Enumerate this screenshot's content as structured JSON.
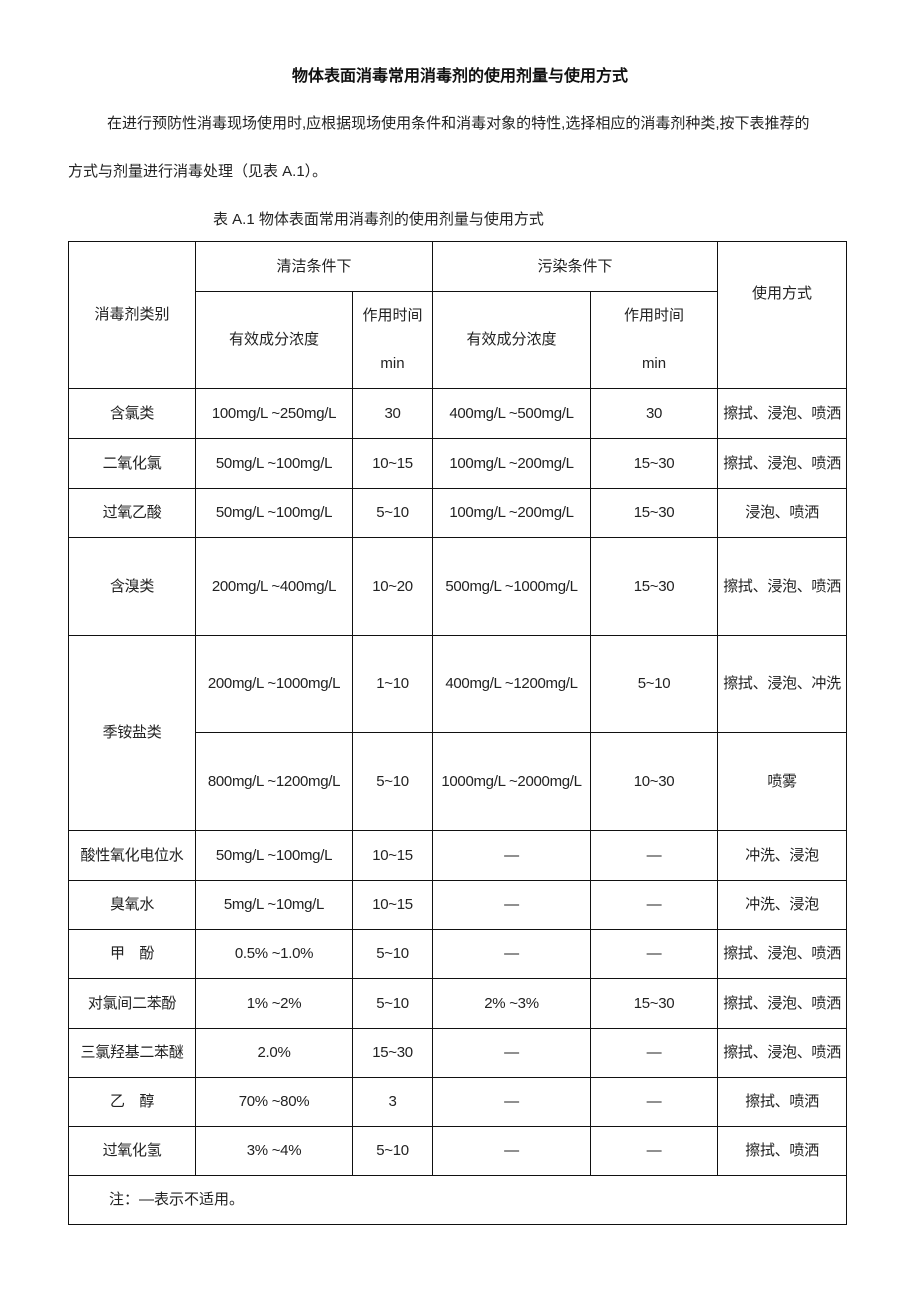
{
  "title": "物体表面消毒常用消毒剂的使用剂量与使用方式",
  "paragraph_line1": "在进行预防性消毒现场使用时,应根据现场使用条件和消毒对象的特性,选择相应的消毒剂种类,按下表推荐的",
  "paragraph_line2": "方式与剂量进行消毒处理（见表 A.1）。",
  "table_caption": "表 A.1  物体表面常用消毒剂的使用剂量与使用方式",
  "table": {
    "header": {
      "category": "消毒剂类别",
      "clean": "清洁条件下",
      "polluted": "污染条件下",
      "method": "使用方式",
      "concentration": "有效成分浓度",
      "time": "作用时间\nmin"
    },
    "rows": [
      {
        "name": "含氯类",
        "c1": "100mg/L ~250mg/L",
        "t1": "30",
        "c2": "400mg/L ~500mg/L",
        "t2": "30",
        "method": "擦拭、浸泡、喷洒"
      },
      {
        "name": "二氧化氯",
        "c1": "50mg/L ~100mg/L",
        "t1": "10~15",
        "c2": "100mg/L ~200mg/L",
        "t2": "15~30",
        "method": "擦拭、浸泡、喷洒"
      },
      {
        "name": "过氧乙酸",
        "c1": "50mg/L ~100mg/L",
        "t1": "5~10",
        "c2": "100mg/L ~200mg/L",
        "t2": "15~30",
        "method": "浸泡、喷洒"
      },
      {
        "name": "含溴类",
        "c1": "200mg/L ~400mg/L",
        "t1": "10~20",
        "c2": "500mg/L\n~1000mg/L",
        "t2": "15~30",
        "method": "擦拭、浸泡、喷洒"
      },
      {
        "name": "季铵盐类",
        "c1": "200mg/L\n~1000mg/L",
        "t1": "1~10",
        "c2": "400mg/L\n~1200mg/L",
        "t2": "5~10",
        "method": "擦拭、浸泡、冲洗"
      },
      {
        "name": "",
        "c1": "800mg/L\n~1200mg/L",
        "t1": "5~10",
        "c2": "1000mg/L\n~2000mg/L",
        "t2": "10~30",
        "method": "喷雾"
      },
      {
        "name": "酸性氧化电位水",
        "c1": "50mg/L ~100mg/L",
        "t1": "10~15",
        "c2": "—",
        "t2": "—",
        "method": "冲洗、浸泡"
      },
      {
        "name": "臭氧水",
        "c1": "5mg/L ~10mg/L",
        "t1": "10~15",
        "c2": "—",
        "t2": "—",
        "method": "冲洗、浸泡"
      },
      {
        "name": "甲　酚",
        "c1": "0.5% ~1.0%",
        "t1": "5~10",
        "c2": "—",
        "t2": "—",
        "method": "擦拭、浸泡、喷洒"
      },
      {
        "name": "对氯间二苯酚",
        "c1": "1% ~2%",
        "t1": "5~10",
        "c2": "2% ~3%",
        "t2": "15~30",
        "method": "擦拭、浸泡、喷洒"
      },
      {
        "name": "三氯羟基二苯醚",
        "c1": "2.0%",
        "t1": "15~30",
        "c2": "—",
        "t2": "—",
        "method": "擦拭、浸泡、喷洒"
      },
      {
        "name": "乙　醇",
        "c1": "70% ~80%",
        "t1": "3",
        "c2": "—",
        "t2": "—",
        "method": "擦拭、喷洒"
      },
      {
        "name": "过氧化氢",
        "c1": "3% ~4%",
        "t1": "5~10",
        "c2": "—",
        "t2": "—",
        "method": "擦拭、喷洒"
      }
    ],
    "note": "注：—表示不适用。"
  }
}
